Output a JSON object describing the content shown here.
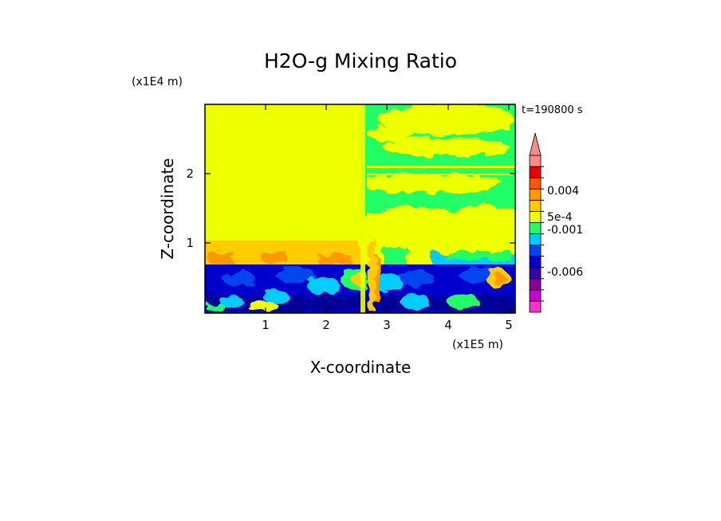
{
  "chart_data": {
    "type": "heatmap",
    "title": "H2O-g Mixing Ratio",
    "xlabel": "X-coordinate",
    "ylabel": "Z-coordinate",
    "x_unit": "(x1E5 m)",
    "y_unit": "(x1E4 m)",
    "time_label": "t=190800 s",
    "xlim": [
      0,
      5.1
    ],
    "ylim": [
      0,
      3
    ],
    "x_ticks": [
      "1",
      "2",
      "3",
      "4",
      "5"
    ],
    "y_ticks": [
      "1",
      "2"
    ],
    "colorbar": {
      "labels": [
        "0.004",
        "5e-4",
        "-0.001",
        "-0.006"
      ],
      "levels": [
        -0.009,
        -0.0075,
        -0.006,
        -0.0045,
        -0.003,
        -0.0015,
        -0.001,
        -0.0005,
        0,
        0.0005,
        0.001,
        0.0025,
        0.004,
        0.0055,
        0.007
      ],
      "colors": [
        "#ff33cc",
        "#cc00cc",
        "#880099",
        "#3300aa",
        "#0000cc",
        "#0044ee",
        "#00ccff",
        "#22ff66",
        "#eeff00",
        "#ffcc00",
        "#ff9900",
        "#ff5500",
        "#ee0000",
        "#ff8888"
      ],
      "extend": "max"
    },
    "regions": [
      {
        "name": "upper-left",
        "x": [
          0,
          2.6
        ],
        "z": [
          1.0,
          3.0
        ],
        "level": "#eeff00"
      },
      {
        "name": "mid-left",
        "x": [
          0,
          2.6
        ],
        "z": [
          0.7,
          1.0
        ],
        "level": "#ffcc00"
      },
      {
        "name": "upper-right",
        "x": [
          2.6,
          5.1
        ],
        "z": [
          1.4,
          3.0
        ],
        "level": "#22ff66"
      },
      {
        "name": "lower-band",
        "x": [
          0,
          5.1
        ],
        "z": [
          0,
          0.7
        ],
        "level": "#0000cc"
      }
    ]
  },
  "colors": {
    "yellow": "#eeff00",
    "green": "#22ff66",
    "orange": "#ffcc00",
    "cyan": "#00ccff",
    "blue": "#0000cc",
    "navy": "#000099",
    "purple": "#880099"
  }
}
